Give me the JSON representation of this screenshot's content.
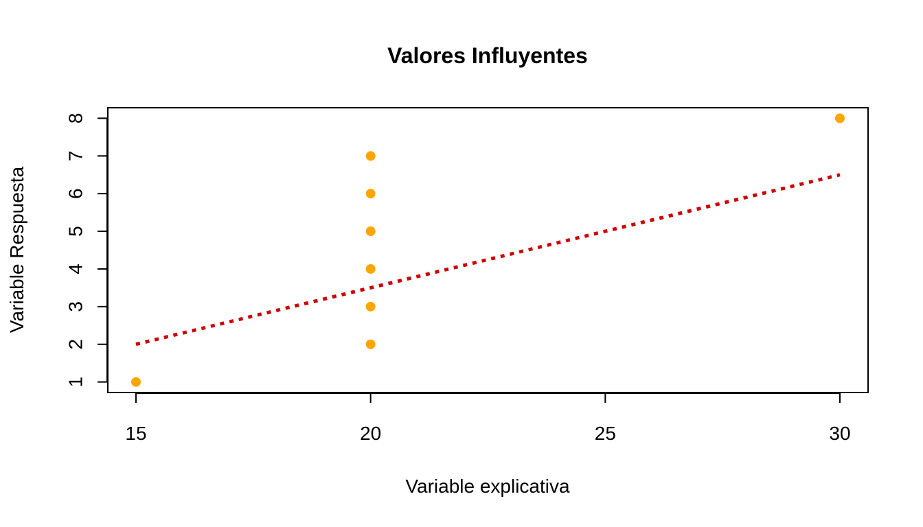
{
  "chart_data": {
    "type": "scatter",
    "title": "Valores Influyentes",
    "xlabel": "Variable explicativa",
    "ylabel": "Variable Respuesta",
    "xlim": [
      14.4,
      30.6
    ],
    "ylim": [
      0.72,
      8.28
    ],
    "x_ticks": [
      15,
      20,
      25,
      30
    ],
    "y_ticks": [
      1,
      2,
      3,
      4,
      5,
      6,
      7,
      8
    ],
    "grid": false,
    "points": {
      "color": "#FFA500",
      "x": [
        15,
        20,
        20,
        20,
        20,
        20,
        20,
        30
      ],
      "y": [
        1,
        2,
        3,
        4,
        5,
        6,
        7,
        8
      ]
    },
    "fit_line": {
      "style": "dotted",
      "color": "#CC0000",
      "intercept": -2.5,
      "slope": 0.3,
      "x_range": [
        15,
        30
      ]
    }
  }
}
